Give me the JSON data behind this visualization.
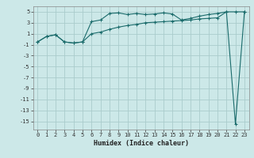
{
  "xlabel": "Humidex (Indice chaleur)",
  "bg_color": "#cce8e8",
  "grid_color": "#aacccc",
  "line_color": "#1a6b6b",
  "x_ticks": [
    0,
    1,
    2,
    3,
    4,
    5,
    6,
    7,
    8,
    9,
    10,
    11,
    12,
    13,
    14,
    15,
    16,
    17,
    18,
    19,
    20,
    21,
    22,
    23
  ],
  "y_ticks": [
    -15,
    -13,
    -11,
    -9,
    -7,
    -5,
    -3,
    -1,
    1,
    3,
    5
  ],
  "ylim": [
    -16.5,
    6.0
  ],
  "xlim": [
    -0.5,
    23.5
  ],
  "line1_x": [
    0,
    1,
    2,
    3,
    4,
    5,
    6,
    7,
    8,
    9,
    10,
    11,
    12,
    13,
    14,
    15,
    16,
    17,
    18,
    19,
    20,
    21,
    22,
    23
  ],
  "line1_y": [
    -0.5,
    0.5,
    0.8,
    -0.5,
    -0.7,
    -0.5,
    3.2,
    3.5,
    4.7,
    4.8,
    4.5,
    4.7,
    4.5,
    4.6,
    4.8,
    4.6,
    3.5,
    3.8,
    4.2,
    4.5,
    4.7,
    5.0,
    5.0,
    5.0
  ],
  "line2_x": [
    0,
    1,
    2,
    3,
    4,
    5,
    6,
    7,
    8,
    9,
    10,
    11,
    12,
    13,
    14,
    15,
    16,
    17,
    18,
    19,
    20,
    21,
    22,
    23
  ],
  "line2_y": [
    -0.5,
    0.5,
    0.8,
    -0.5,
    -0.7,
    -0.5,
    1.0,
    1.3,
    1.8,
    2.2,
    2.5,
    2.7,
    3.0,
    3.1,
    3.2,
    3.3,
    3.4,
    3.5,
    3.7,
    3.8,
    3.9,
    5.0,
    -15.5,
    5.0
  ],
  "xlabel_fontsize": 6.0,
  "tick_fontsize": 5.0
}
